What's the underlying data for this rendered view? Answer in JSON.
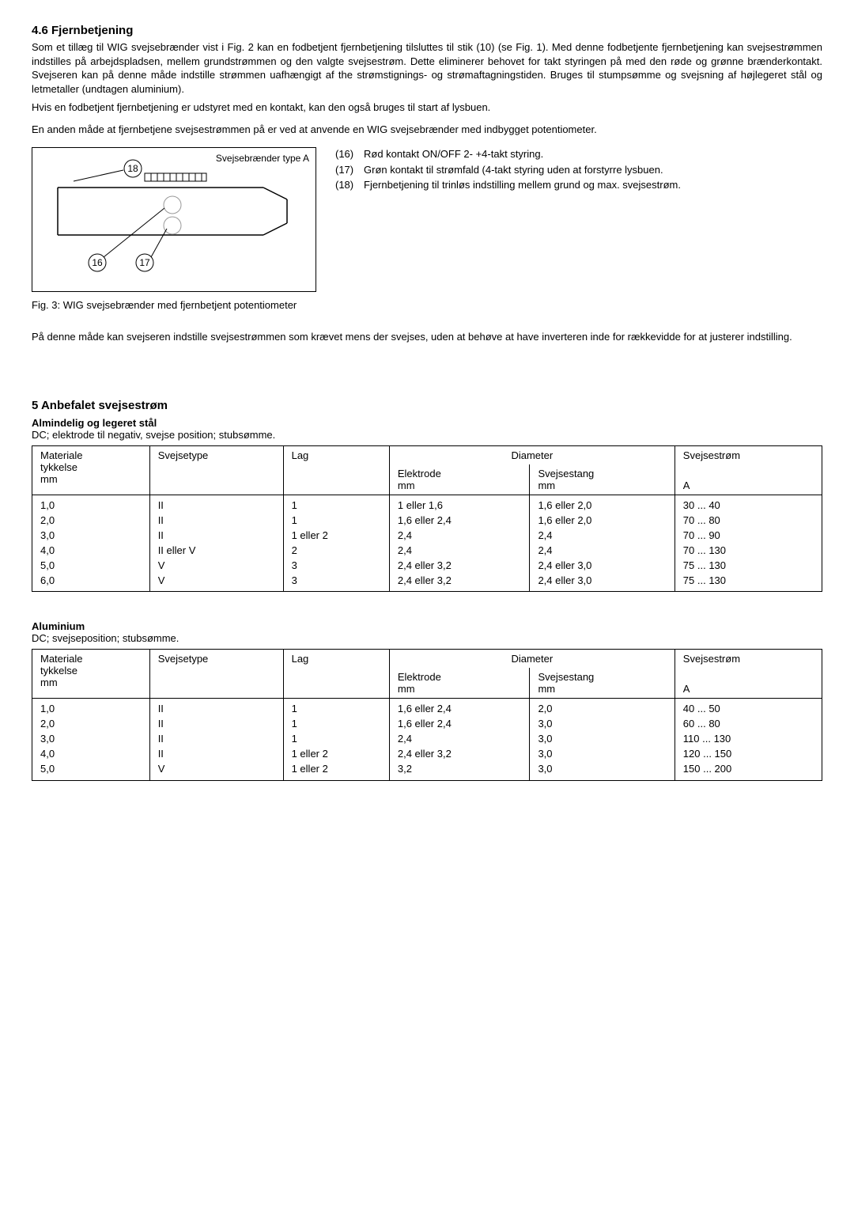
{
  "section46": {
    "heading": "4.6   Fjernbetjening",
    "para1": "Som et tillæg til WIG svejsebrænder vist i Fig. 2 kan en fodbetjent fjernbetjening tilsluttes til stik (10) (se Fig. 1). Med denne fodbetjente fjernbetjening kan svejsestrømmen indstilles på arbejdspladsen, mellem grundstrømmen og den valgte svejsestrøm. Dette eliminerer behovet for takt styringen på med den røde og grønne brænderkontakt. Svejseren kan på denne måde indstille strømmen uafhængigt af the strømstignings- og strømaftagningstiden. Bruges til stumpsømme og svejsning af højlegeret stål og letmetaller (undtagen aluminium).",
    "para2": "Hvis en fodbetjent fjernbetjening er udstyret med en kontakt, kan den også bruges til start af lysbuen.",
    "para3": "En anden måde at fjernbetjene svejsestrømmen på er ved at anvende en WIG svejsebrænder med indbygget potentiometer.",
    "figLabel": "Svejsebrænder type A",
    "figCaption": "Fig. 3: WIG svejsebrænder med fjernbetjent potentiometer",
    "legend": [
      {
        "num": "(16)",
        "txt": "Rød kontakt ON/OFF 2- +4-takt styring."
      },
      {
        "num": "(17)",
        "txt": "Grøn kontakt til strømfald (4-takt styring uden at forstyrre lysbuen."
      },
      {
        "num": "(18)",
        "txt": "Fjernbetjening til trinløs indstilling mellem grund og max. svejsestrøm."
      }
    ],
    "para4": "På denne måde kan svejseren indstille svejsestrømmen som krævet mens der svejses, uden at behøve at have inverteren inde for rækkevidde for at justerer indstilling.",
    "calloutNums": {
      "a": "18",
      "b": "16",
      "c": "17"
    }
  },
  "section5": {
    "heading": "5     Anbefalet svejsestrøm",
    "steel": {
      "subhead": "Almindelig og legeret stål",
      "desc": "DC; elektrode til negativ, svejse position; stubsømme.",
      "headers": {
        "mat": "Materiale tykkelse mm",
        "svt": "Svejsetype",
        "lag": "Lag",
        "dia": "Diameter",
        "elec": "Elektrode mm",
        "stang": "Svejsestang mm",
        "strom": "Svejsestrøm",
        "amp": "A"
      },
      "col1": [
        "1,0",
        "2,0",
        "3,0",
        "4,0",
        "5,0",
        "6,0"
      ],
      "col2": [
        "II",
        "II",
        "II",
        "II eller V",
        "V",
        "V"
      ],
      "col3": [
        "1",
        "1",
        "1 eller 2",
        "2",
        "3",
        "3"
      ],
      "col4": [
        "1 eller 1,6",
        "1,6 eller 2,4",
        "2,4",
        "2,4",
        "2,4 eller 3,2",
        "2,4 eller 3,2"
      ],
      "col5": [
        "1,6 eller 2,0",
        "1,6 eller 2,0",
        "2,4",
        "2,4",
        "2,4 eller 3,0",
        "2,4 eller 3,0"
      ],
      "col6": [
        "30 ...   40",
        "70 ...   80",
        "70 ...   90",
        "70 ... 130",
        "75 ... 130",
        "75 ... 130"
      ]
    },
    "alum": {
      "subhead": "Aluminium",
      "desc": "DC; svejseposition; stubsømme.",
      "col1": [
        "1,0",
        "2,0",
        "3,0",
        "4,0",
        "5,0"
      ],
      "col2": [
        "II",
        "II",
        "II",
        "II",
        "V"
      ],
      "col3": [
        "1",
        "1",
        "1",
        "1 eller 2",
        "1 eller 2"
      ],
      "col4": [
        "1,6 eller 2,4",
        "1,6 eller 2,4",
        "2,4",
        "2,4 eller 3,2",
        "3,2"
      ],
      "col5": [
        "2,0",
        "3,0",
        "3,0",
        "3,0",
        "3,0"
      ],
      "col6": [
        "40 ...   50",
        "60 ...   80",
        "110 ... 130",
        "120 ... 150",
        "150 ... 200"
      ]
    }
  }
}
